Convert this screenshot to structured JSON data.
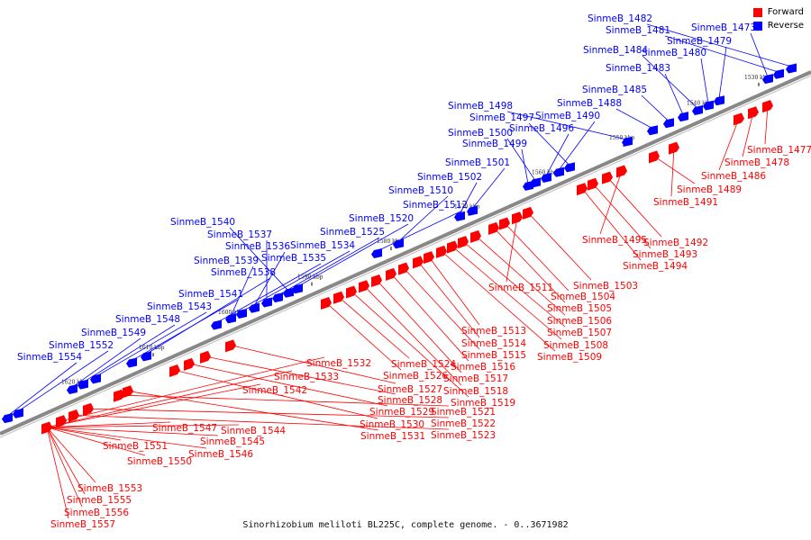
{
  "caption": "Sinorhizobium meliloti BL225C, complete genome. - 0..3671982",
  "legend": [
    {
      "label": "Forward",
      "color": "#ff0000"
    },
    {
      "label": "Reverse",
      "color": "#0000ff"
    }
  ],
  "colors": {
    "forward": "#ff0000",
    "reverse": "#0000ff",
    "axis": "#888888"
  },
  "ticks": [
    "1530 kbp",
    "1540 kbp",
    "1550 kbp",
    "1560 kbp",
    "1570 kbp",
    "1580 kbp",
    "1590 kbp",
    "1600 kbp",
    "1610 kbp",
    "1620 kbp"
  ],
  "reverse_labels": [
    "SinmeB_1482",
    "SinmeB_1481",
    "SinmeB_1473",
    "SinmeB_1479",
    "SinmeB_1480",
    "SinmeB_1484",
    "SinmeB_1483",
    "SinmeB_1485",
    "SinmeB_1488",
    "SinmeB_1498",
    "SinmeB_1497",
    "SinmeB_1490",
    "SinmeB_1496",
    "SinmeB_1500",
    "SinmeB_1499",
    "SinmeB_1501",
    "SinmeB_1502",
    "SinmeB_1510",
    "SinmeB_1512",
    "SinmeB_1520",
    "SinmeB_1540",
    "SinmeB_1525",
    "SinmeB_1537",
    "SinmeB_1536",
    "SinmeB_1534",
    "SinmeB_1539",
    "SinmeB_1535",
    "SinmeB_1538",
    "SinmeB_1541",
    "SinmeB_1543",
    "SinmeB_1548",
    "SinmeB_1549",
    "SinmeB_1552",
    "SinmeB_1554"
  ],
  "forward_labels": [
    "SinmeB_1477",
    "SinmeB_1478",
    "SinmeB_1486",
    "SinmeB_1489",
    "SinmeB_1491",
    "SinmeB_1495",
    "SinmeB_1492",
    "SinmeB_1493",
    "SinmeB_1494",
    "SinmeB_1503",
    "SinmeB_1511",
    "SinmeB_1504",
    "SinmeB_1505",
    "SinmeB_1506",
    "SinmeB_1507",
    "SinmeB_1508",
    "SinmeB_1509",
    "SinmeB_1513",
    "SinmeB_1514",
    "SinmeB_1515",
    "SinmeB_1516",
    "SinmeB_1517",
    "SinmeB_1518",
    "SinmeB_1519",
    "SinmeB_1524",
    "SinmeB_1526",
    "SinmeB_1527",
    "SinmeB_1528",
    "SinmeB_1529",
    "SinmeB_1530",
    "SinmeB_1531",
    "SinmeB_1521",
    "SinmeB_1522",
    "SinmeB_1523",
    "SinmeB_1532",
    "SinmeB_1533",
    "SinmeB_1542",
    "SinmeB_1544",
    "SinmeB_1547",
    "SinmeB_1545",
    "SinmeB_1546",
    "SinmeB_1551",
    "SinmeB_1550",
    "SinmeB_1553",
    "SinmeB_1555",
    "SinmeB_1556",
    "SinmeB_1557"
  ]
}
